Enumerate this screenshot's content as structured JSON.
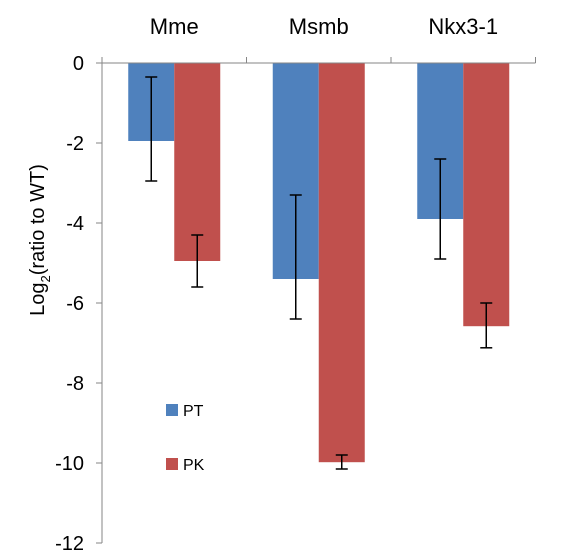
{
  "chart_data": {
    "type": "bar",
    "title": "",
    "xlabel": "",
    "ylabel": {
      "prefix": "Log",
      "sub": "2",
      "suffix": "(ratio to WT)"
    },
    "categories": [
      "Mme",
      "Msmb",
      "Nkx3-1"
    ],
    "ylim": [
      -12,
      0
    ],
    "yticks": [
      0,
      -2,
      -4,
      -6,
      -8,
      -10,
      -12
    ],
    "ytick_labels": [
      "0",
      "-2",
      "-4",
      "-6",
      "-8",
      "-10",
      "-12"
    ],
    "category_axis_position": "top",
    "grid": false,
    "legend_position": "lower-left inside",
    "series": [
      {
        "name": "PT",
        "color": "#4f81bd",
        "values": [
          -1.95,
          -5.4,
          -3.9
        ],
        "error_high": [
          -0.35,
          -3.3,
          -2.4
        ],
        "error_low": [
          -2.95,
          -6.4,
          -4.9
        ]
      },
      {
        "name": "PK",
        "color": "#c0504d",
        "values": [
          -4.95,
          -9.98,
          -6.58
        ],
        "error_high": [
          -4.3,
          -9.8,
          -6.0
        ],
        "error_low": [
          -5.6,
          -10.15,
          -7.12
        ]
      }
    ]
  }
}
